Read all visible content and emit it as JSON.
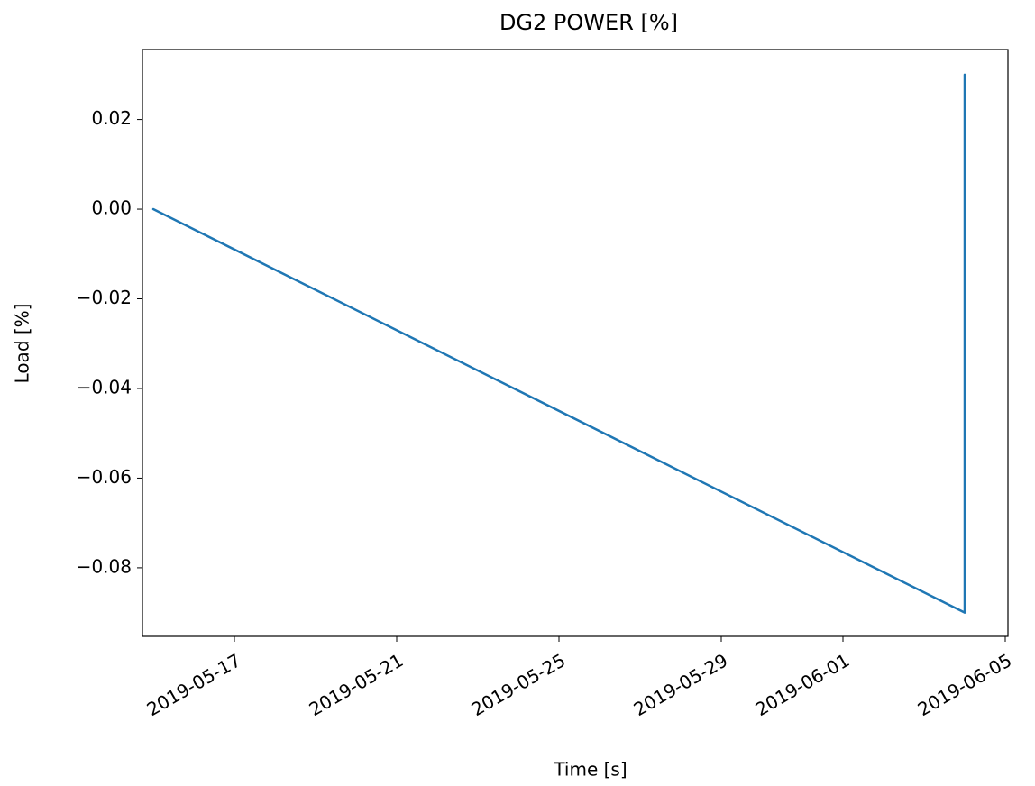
{
  "chart_data": {
    "type": "line",
    "title": "DG2 POWER [%]",
    "xlabel": "Time [s]",
    "ylabel": "Load [%]",
    "x": [
      "2019-05-15",
      "2019-06-04",
      "2019-06-04",
      "2019-06-04",
      "2019-06-04",
      "2019-06-04",
      "2019-06-04"
    ],
    "series": [
      {
        "color": "#1f77b4",
        "values": [
          0.0,
          -0.09,
          0.03,
          -0.09,
          0.03,
          -0.09,
          0.03
        ]
      }
    ],
    "xlim": [
      "2019-05-14T17:36",
      "2019-06-05T01:36"
    ],
    "xticks": [
      "2019-05-17",
      "2019-05-21",
      "2019-05-25",
      "2019-05-29",
      "2019-06-01",
      "2019-06-05"
    ],
    "ylim": [
      -0.0953,
      0.0356
    ],
    "yticks": [
      {
        "value": -0.08,
        "label": "−0.08"
      },
      {
        "value": -0.06,
        "label": "−0.06"
      },
      {
        "value": -0.04,
        "label": "−0.04"
      },
      {
        "value": -0.02,
        "label": "−0.02"
      },
      {
        "value": 0,
        "label": "0.00"
      },
      0.02
    ],
    "grid": false
  }
}
